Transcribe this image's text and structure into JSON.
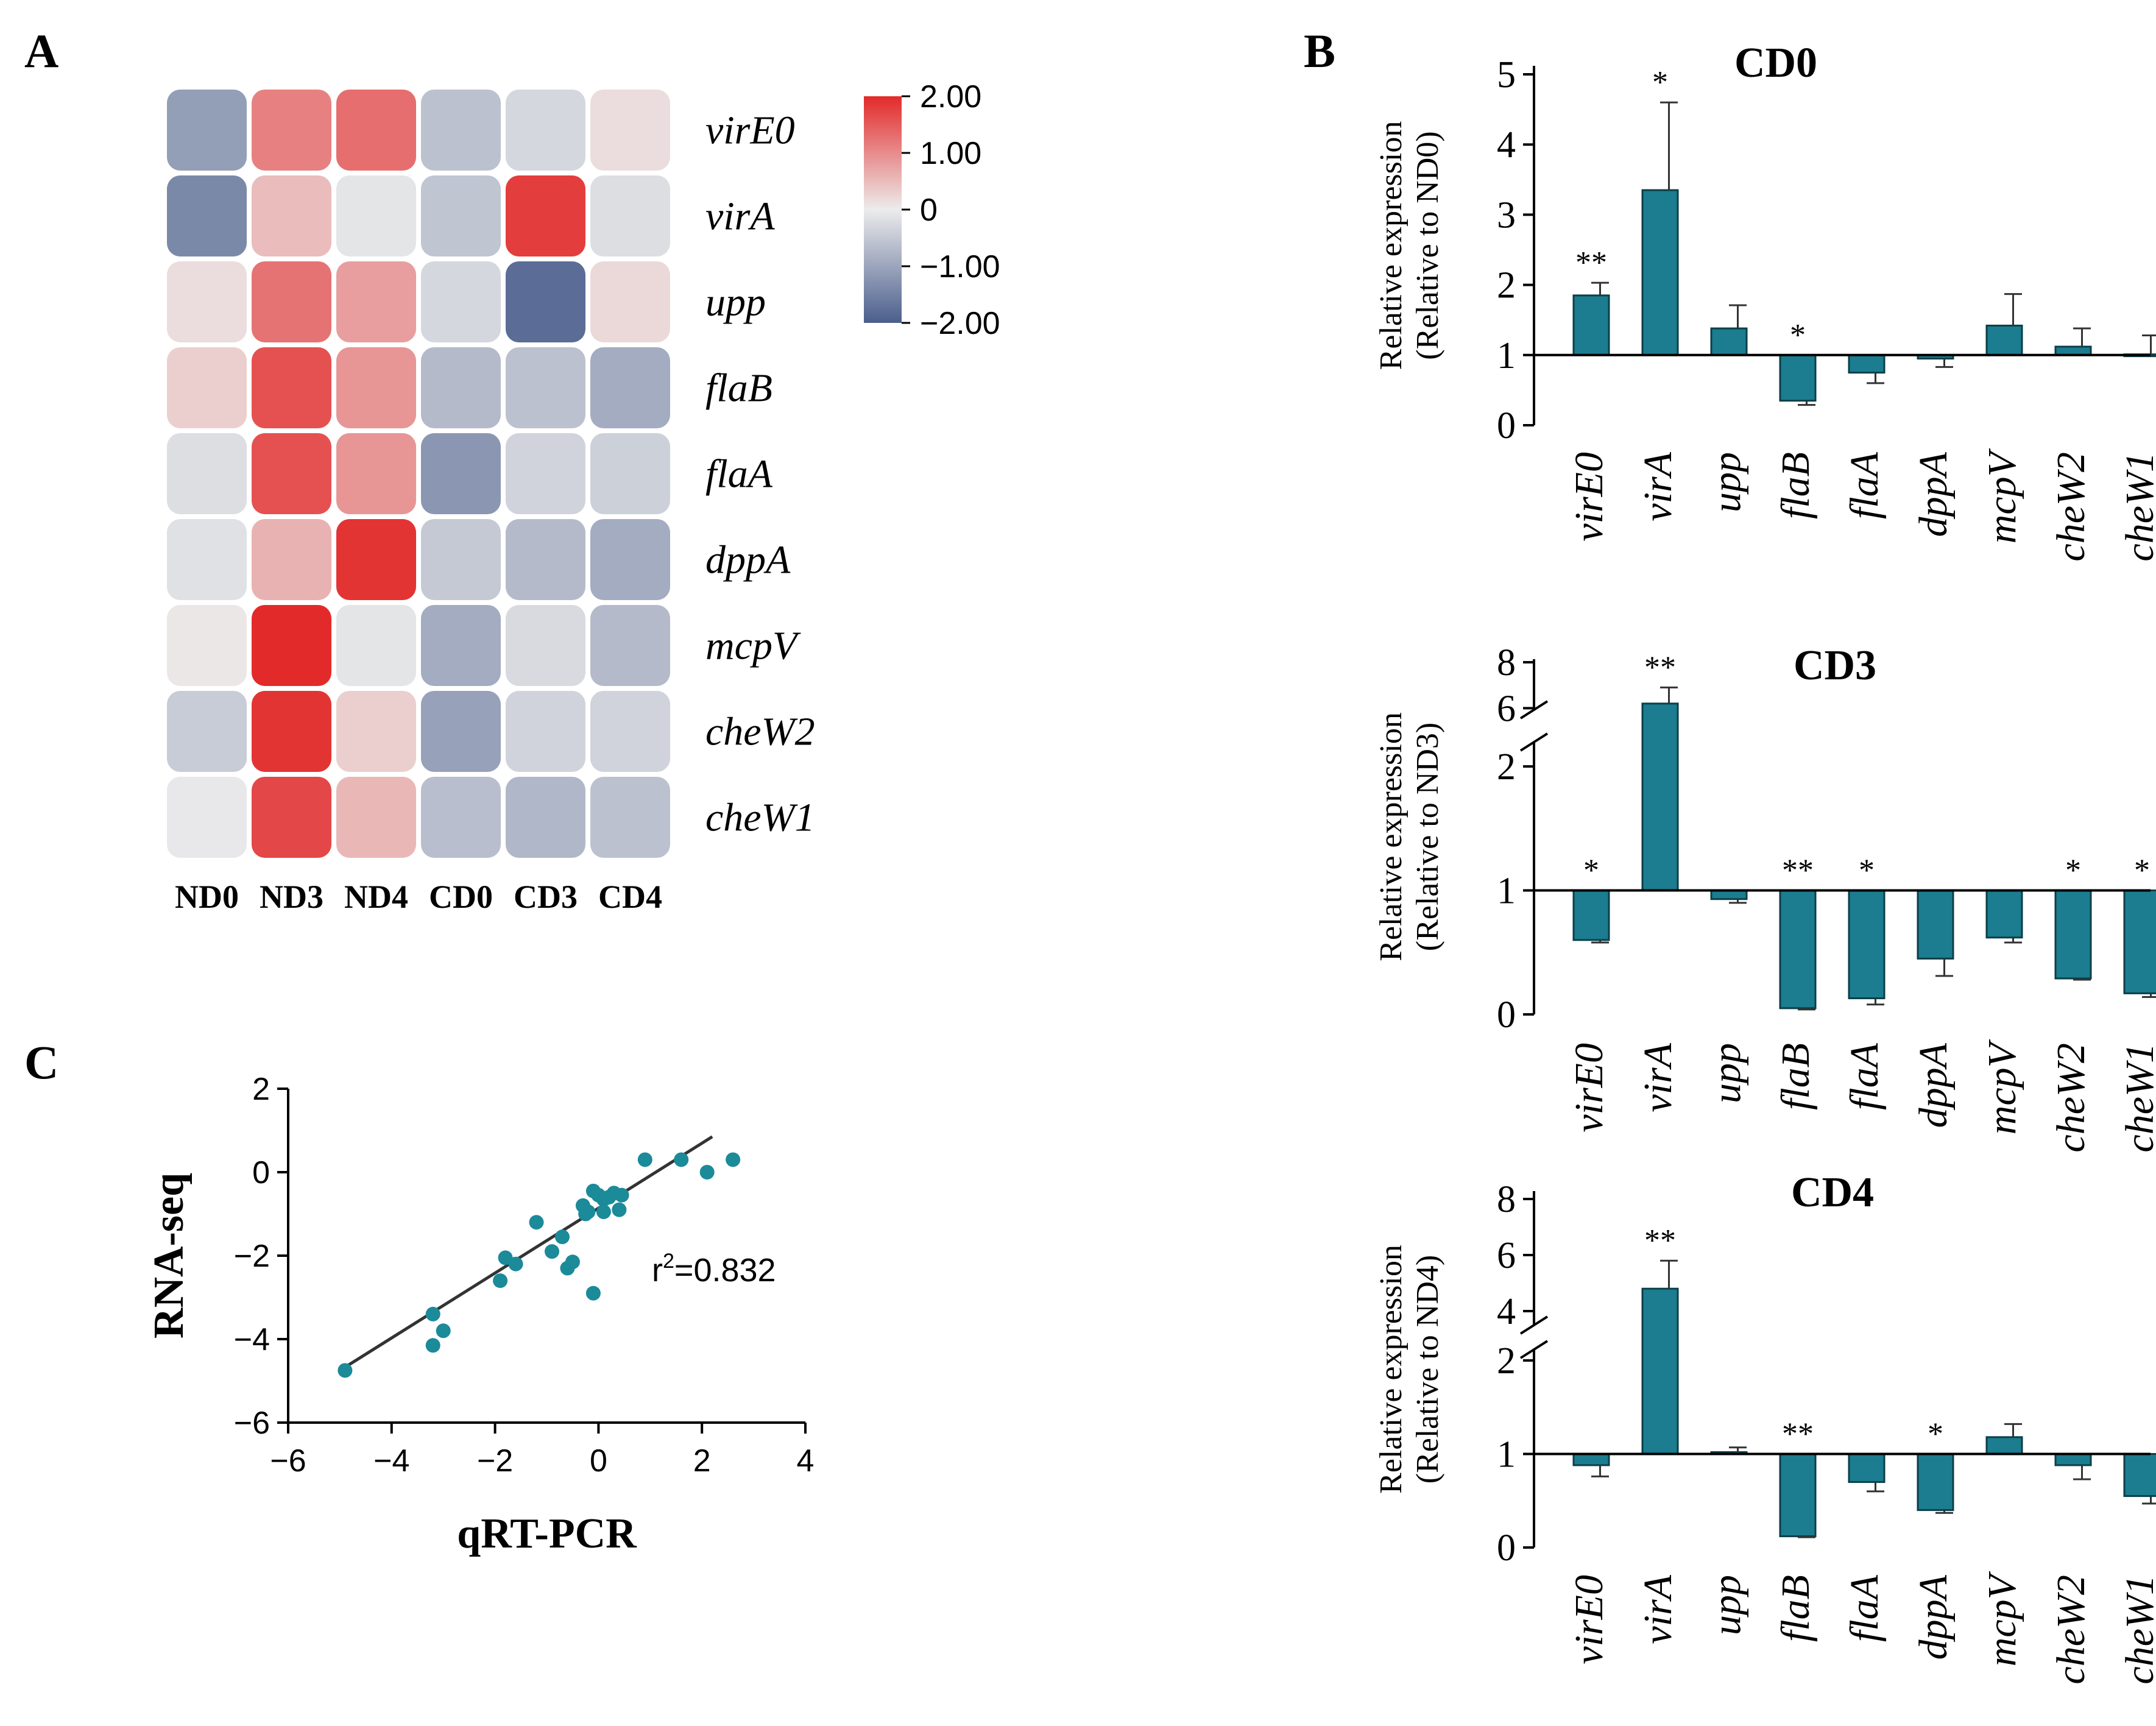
{
  "panels": {
    "a": "A",
    "b": "B",
    "c": "C"
  },
  "colors": {
    "bar": "#1b7d8f",
    "heat_high": "#e32a2a",
    "heat_mid": "#ececec",
    "heat_low": "#4b5e8c",
    "scatter_point": "#1b8a99",
    "fit_line": "#333333"
  },
  "chart_data": [
    {
      "id": "A",
      "type": "heatmap",
      "rows": [
        "virE0",
        "virA",
        "upp",
        "flaB",
        "flaA",
        "dppA",
        "mcpV",
        "cheW2",
        "cheW1"
      ],
      "columns": [
        "ND0",
        "ND3",
        "ND4",
        "CD0",
        "CD3",
        "CD4"
      ],
      "values": [
        [
          -1.1,
          1.1,
          1.3,
          -0.6,
          -0.3,
          0.15
        ],
        [
          -1.4,
          0.5,
          -0.1,
          -0.55,
          1.8,
          -0.2
        ],
        [
          0.15,
          1.25,
          0.8,
          -0.3,
          -1.8,
          0.2
        ],
        [
          0.3,
          1.6,
          0.9,
          -0.7,
          -0.6,
          -0.9
        ],
        [
          -0.2,
          1.6,
          0.9,
          -1.2,
          -0.35,
          -0.4
        ],
        [
          -0.15,
          0.6,
          1.9,
          -0.5,
          -0.7,
          -0.9
        ],
        [
          0.05,
          2.0,
          -0.1,
          -0.9,
          -0.25,
          -0.7
        ],
        [
          -0.45,
          1.9,
          0.3,
          -1.05,
          -0.35,
          -0.35
        ],
        [
          -0.05,
          1.7,
          0.55,
          -0.65,
          -0.75,
          -0.6
        ]
      ],
      "colorbar": {
        "ticks": [
          2.0,
          1.0,
          0,
          -1.0,
          -2.0
        ],
        "labels": [
          "2.00",
          "1.00",
          "0",
          "−1.00",
          "−2.00"
        ],
        "range": [
          -2,
          2
        ]
      }
    },
    {
      "id": "B-CD0",
      "type": "bar",
      "title": "CD0",
      "ylabel": "Relative expression",
      "ylabel2": "(Relative to ND0)",
      "categories": [
        "virE0",
        "virA",
        "upp",
        "flaB",
        "flaA",
        "dppA",
        "mcpV",
        "cheW2",
        "cheW1"
      ],
      "values": [
        1.85,
        3.35,
        1.38,
        0.35,
        0.75,
        0.95,
        1.42,
        1.12,
        1.01
      ],
      "errors": [
        0.18,
        1.25,
        0.33,
        0.06,
        0.15,
        0.12,
        0.45,
        0.26,
        0.27
      ],
      "significance": [
        "**",
        "*",
        "",
        "*",
        "",
        "",
        "",
        "",
        ""
      ],
      "yticks": [
        "0",
        "1",
        "2",
        "3",
        "4",
        "5"
      ],
      "ylim": [
        0,
        5
      ],
      "baseline": 1
    },
    {
      "id": "B-CD3",
      "type": "bar",
      "title": "CD3",
      "ylabel": "Relative expression",
      "ylabel2": "(Relative to ND3)",
      "categories": [
        "virE0",
        "virA",
        "upp",
        "flaB",
        "flaA",
        "dppA",
        "mcpV",
        "cheW2",
        "cheW1"
      ],
      "values": [
        0.6,
        6.2,
        0.93,
        0.05,
        0.13,
        0.45,
        0.62,
        0.29,
        0.17
      ],
      "errors": [
        0.02,
        0.7,
        0.03,
        0.01,
        0.05,
        0.14,
        0.04,
        0.01,
        0.03
      ],
      "significance": [
        "*",
        "**",
        "",
        "**",
        "*",
        "",
        "",
        "*",
        "*"
      ],
      "yticks": [
        "0",
        "1",
        "2",
        "6",
        "8"
      ],
      "axis_break": [
        2,
        5
      ],
      "ylim": [
        0,
        8
      ],
      "baseline": 1
    },
    {
      "id": "B-CD4",
      "type": "bar",
      "title": "CD4",
      "ylabel": "Relative expression",
      "ylabel2": "(Relative to ND4)",
      "categories": [
        "virE0",
        "virA",
        "upp",
        "flaB",
        "flaA",
        "dppA",
        "mcpV",
        "cheW2",
        "cheW1"
      ],
      "values": [
        0.88,
        4.8,
        1.02,
        0.12,
        0.7,
        0.4,
        1.18,
        0.88,
        0.55
      ],
      "errors": [
        0.12,
        1.0,
        0.05,
        0.01,
        0.1,
        0.03,
        0.14,
        0.15,
        0.08
      ],
      "significance": [
        "",
        "**",
        "",
        "**",
        "",
        "*",
        "",
        "",
        ""
      ],
      "yticks": [
        "0",
        "1",
        "2",
        "4",
        "6",
        "8"
      ],
      "axis_break": [
        2,
        4
      ],
      "ylim": [
        0,
        8
      ],
      "baseline": 1
    },
    {
      "id": "C",
      "type": "scatter",
      "xlabel": "qRT-PCR",
      "ylabel": "RNA-seq",
      "xlim": [
        -6,
        4
      ],
      "ylim": [
        -6,
        2
      ],
      "xticks": [
        "−6",
        "−4",
        "−2",
        "0",
        "2",
        "4"
      ],
      "yticks": [
        "2",
        "0",
        "−2",
        "−4",
        "−6"
      ],
      "annotation_prefix": "r",
      "annotation_sup": "2",
      "annotation_value": "=0.832",
      "fit": {
        "x": [
          -5.0,
          2.2
        ],
        "y": [
          -4.75,
          0.85
        ]
      },
      "points": [
        [
          -4.9,
          -4.75
        ],
        [
          -3.2,
          -3.4
        ],
        [
          -3.2,
          -4.15
        ],
        [
          -3.0,
          -3.8
        ],
        [
          -1.9,
          -2.6
        ],
        [
          -1.8,
          -2.05
        ],
        [
          -1.6,
          -2.2
        ],
        [
          -1.2,
          -1.2
        ],
        [
          -0.9,
          -1.9
        ],
        [
          -0.7,
          -1.55
        ],
        [
          -0.6,
          -2.3
        ],
        [
          -0.5,
          -2.15
        ],
        [
          -0.3,
          -0.8
        ],
        [
          -0.25,
          -1.0
        ],
        [
          -0.2,
          -0.95
        ],
        [
          -0.1,
          -2.9
        ],
        [
          -0.1,
          -0.45
        ],
        [
          0.0,
          -0.55
        ],
        [
          0.1,
          -0.65
        ],
        [
          0.1,
          -0.95
        ],
        [
          0.2,
          -0.6
        ],
        [
          0.3,
          -0.5
        ],
        [
          0.4,
          -0.9
        ],
        [
          0.45,
          -0.55
        ],
        [
          0.9,
          0.3
        ],
        [
          1.6,
          0.3
        ],
        [
          2.1,
          0.0
        ],
        [
          2.6,
          0.3
        ]
      ]
    }
  ]
}
